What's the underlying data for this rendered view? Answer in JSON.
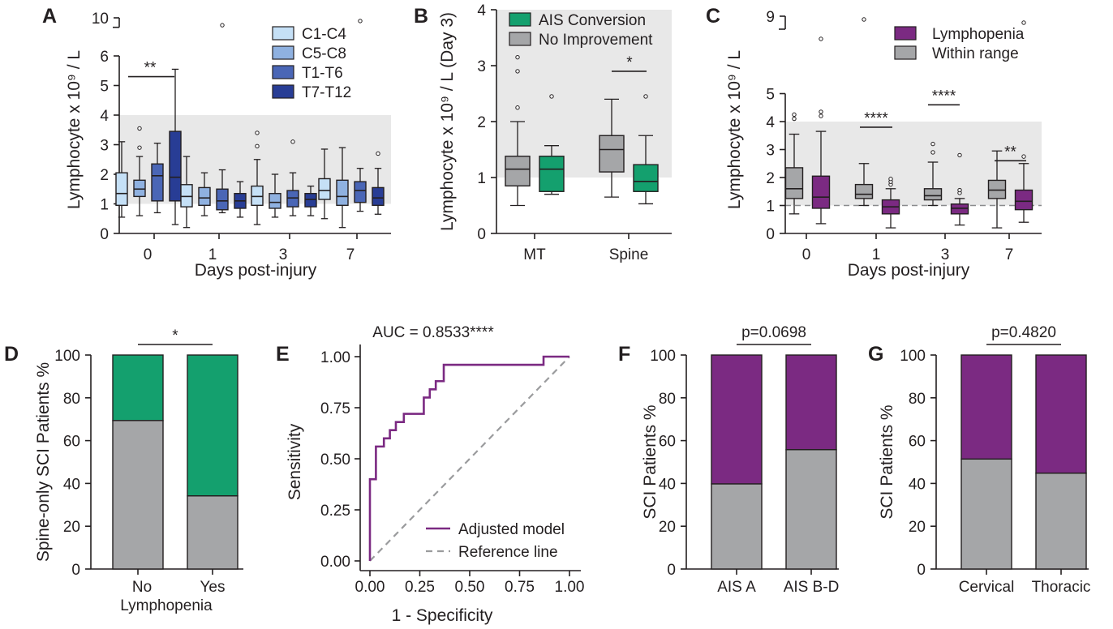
{
  "colors": {
    "C1-C4": "#c5e0f6",
    "C5-C8": "#8fb1e0",
    "T1-T6": "#4a66b6",
    "T7-T12": "#283d95",
    "green": "#14a06e",
    "grey": "#a5a6a8",
    "purple": "#7b2a82",
    "normal_band": "#e8e8e8",
    "line": "#231f20"
  },
  "chart_data": [
    {
      "panel": "A",
      "type": "box",
      "xlabel": "Days post-injury",
      "ylabel": "Lymphocyte x 10⁹ / L",
      "categories": [
        "0",
        "1",
        "3",
        "7"
      ],
      "ylim": [
        0,
        10
      ],
      "axis_break": [
        6,
        10
      ],
      "y_ticks": [
        "0",
        "1",
        "2",
        "3",
        "4",
        "5",
        "6",
        "10"
      ],
      "shaded_range": [
        1,
        4
      ],
      "legend": [
        "C1-C4",
        "C5-C8",
        "T1-T6",
        "T7-T12"
      ],
      "series": [
        {
          "name": "C1-C4",
          "boxes": [
            {
              "min": 0.55,
              "q1": 0.95,
              "median": 1.35,
              "q3": 2.05,
              "max": 3.1,
              "outliers": []
            },
            {
              "min": 0.2,
              "q1": 0.9,
              "median": 1.25,
              "q3": 1.65,
              "max": 2.6,
              "outliers": []
            },
            {
              "min": 0.3,
              "q1": 0.95,
              "median": 1.25,
              "q3": 1.6,
              "max": 2.5,
              "outliers": [
                2.95,
                3.4
              ]
            },
            {
              "min": 0.5,
              "q1": 1.15,
              "median": 1.45,
              "q3": 1.85,
              "max": 2.85,
              "outliers": []
            }
          ]
        },
        {
          "name": "C5-C8",
          "boxes": [
            {
              "min": 0.6,
              "q1": 1.25,
              "median": 1.5,
              "q3": 1.8,
              "max": 2.6,
              "outliers": [
                2.9,
                3.55
              ]
            },
            {
              "min": 0.6,
              "q1": 0.95,
              "median": 1.2,
              "q3": 1.55,
              "max": 2.05,
              "outliers": []
            },
            {
              "min": 0.55,
              "q1": 0.85,
              "median": 1.05,
              "q3": 1.35,
              "max": 2.0,
              "outliers": []
            },
            {
              "min": 0.2,
              "q1": 0.95,
              "median": 1.25,
              "q3": 1.8,
              "max": 2.9,
              "outliers": []
            }
          ]
        },
        {
          "name": "T1-T6",
          "boxes": [
            {
              "min": 0.7,
              "q1": 1.1,
              "median": 1.95,
              "q3": 2.35,
              "max": 3.05,
              "outliers": []
            },
            {
              "min": 0.7,
              "q1": 0.8,
              "median": 1.1,
              "q3": 1.5,
              "max": 2.15,
              "outliers": [
                9.3
              ]
            },
            {
              "min": 0.6,
              "q1": 0.9,
              "median": 1.2,
              "q3": 1.45,
              "max": 2.05,
              "outliers": [
                3.1
              ]
            },
            {
              "min": 0.75,
              "q1": 1.05,
              "median": 1.45,
              "q3": 1.75,
              "max": 2.2,
              "outliers": [
                9.7
              ]
            }
          ]
        },
        {
          "name": "T7-T12",
          "boxes": [
            {
              "min": 0.3,
              "q1": 1.1,
              "median": 1.9,
              "q3": 3.45,
              "max": 5.55,
              "outliers": []
            },
            {
              "min": 0.55,
              "q1": 0.85,
              "median": 1.1,
              "q3": 1.35,
              "max": 1.75,
              "outliers": []
            },
            {
              "min": 0.6,
              "q1": 0.9,
              "median": 1.15,
              "q3": 1.35,
              "max": 1.6,
              "outliers": []
            },
            {
              "min": 0.65,
              "q1": 0.95,
              "median": 1.2,
              "q3": 1.55,
              "max": 2.2,
              "outliers": [
                2.7
              ]
            }
          ]
        }
      ],
      "annotations": [
        {
          "text": "**",
          "between": "day 0: C1-C4 vs T7-T12"
        }
      ]
    },
    {
      "panel": "B",
      "type": "box",
      "xlabel": "",
      "ylabel": "Lymphocyte x 10⁹ / L (Day 3)",
      "categories": [
        "MT",
        "Spine"
      ],
      "ylim": [
        0,
        4
      ],
      "y_ticks": [
        "0",
        "1",
        "2",
        "3",
        "4"
      ],
      "shaded_range": [
        1,
        4
      ],
      "legend": [
        "AIS Conversion",
        "No Improvement"
      ],
      "series": [
        {
          "name": "No Improvement",
          "boxes": [
            {
              "min": 0.5,
              "q1": 0.85,
              "median": 1.15,
              "q3": 1.38,
              "max": 2.0,
              "outliers": [
                2.25,
                2.9,
                3.15
              ]
            },
            {
              "min": 0.65,
              "q1": 1.1,
              "median": 1.5,
              "q3": 1.75,
              "max": 2.4,
              "outliers": []
            }
          ]
        },
        {
          "name": "AIS Conversion",
          "boxes": [
            {
              "min": 0.7,
              "q1": 0.75,
              "median": 1.15,
              "q3": 1.38,
              "max": 1.57,
              "outliers": [
                2.45
              ]
            },
            {
              "min": 0.53,
              "q1": 0.75,
              "median": 0.93,
              "q3": 1.23,
              "max": 1.75,
              "outliers": [
                2.45
              ]
            }
          ]
        }
      ],
      "annotations": [
        {
          "text": "*",
          "between": "Spine: No Improvement vs AIS Conversion"
        }
      ]
    },
    {
      "panel": "C",
      "type": "box",
      "xlabel": "Days post-injury",
      "ylabel": "Lymphocyte x 10⁹ / L",
      "categories": [
        "0",
        "1",
        "3",
        "7"
      ],
      "ylim": [
        0,
        9
      ],
      "axis_break": [
        5,
        9
      ],
      "y_ticks": [
        "0",
        "1",
        "2",
        "3",
        "4",
        "5",
        "9"
      ],
      "shaded_range": [
        1,
        4
      ],
      "reference_line": 1,
      "legend": [
        "Lymphopenia",
        "Within range"
      ],
      "series": [
        {
          "name": "Within range",
          "boxes": [
            {
              "min": 0.7,
              "q1": 1.25,
              "median": 1.6,
              "q3": 2.35,
              "max": 3.55,
              "outliers": [
                4.1,
                4.25
              ]
            },
            {
              "min": 1.0,
              "q1": 1.25,
              "median": 1.4,
              "q3": 1.75,
              "max": 2.5,
              "outliers": [
                8.8
              ]
            },
            {
              "min": 1.0,
              "q1": 1.2,
              "median": 1.35,
              "q3": 1.6,
              "max": 2.55,
              "outliers": [
                2.9,
                3.2
              ]
            },
            {
              "min": 0.2,
              "q1": 1.25,
              "median": 1.55,
              "q3": 1.9,
              "max": 2.95,
              "outliers": []
            }
          ]
        },
        {
          "name": "Lymphopenia",
          "boxes": [
            {
              "min": 0.35,
              "q1": 0.9,
              "median": 1.3,
              "q3": 2.05,
              "max": 3.65,
              "outliers": [
                4.2,
                4.35,
                7.6
              ]
            },
            {
              "min": 0.2,
              "q1": 0.7,
              "median": 0.95,
              "q3": 1.2,
              "max": 1.6,
              "outliers": [
                1.75,
                1.85,
                1.95
              ]
            },
            {
              "min": 0.3,
              "q1": 0.7,
              "median": 0.9,
              "q3": 1.05,
              "max": 1.25,
              "outliers": [
                1.45,
                1.55,
                2.8
              ]
            },
            {
              "min": 0.4,
              "q1": 0.85,
              "median": 1.15,
              "q3": 1.55,
              "max": 2.5,
              "outliers": [
                2.75,
                8.6
              ]
            }
          ]
        }
      ],
      "annotations": [
        {
          "text": "****",
          "between": "day 1"
        },
        {
          "text": "****",
          "between": "day 3"
        },
        {
          "text": "**",
          "between": "day 7"
        }
      ]
    },
    {
      "panel": "D",
      "type": "bar",
      "stacked": true,
      "ylabel": "Spine-only SCI Patients %",
      "categories": [
        "No\nLymphopenia",
        "Yes"
      ],
      "category_lines": [
        [
          "No",
          "Lymphopenia"
        ],
        [
          "Yes"
        ]
      ],
      "ylim": [
        0,
        100
      ],
      "y_ticks": [
        "0",
        "20",
        "40",
        "60",
        "80",
        "100"
      ],
      "series": [
        {
          "color": "grey",
          "values": [
            69.4,
            34.2
          ]
        },
        {
          "color": "green",
          "values": [
            30.6,
            65.8
          ]
        }
      ],
      "annotation": "*"
    },
    {
      "panel": "E",
      "type": "line",
      "title": "AUC = 0.8533****",
      "xlabel": "1 - Specificity",
      "ylabel": "Sensitivity",
      "xlim": [
        0,
        1
      ],
      "ylim": [
        0,
        1
      ],
      "x_ticks": [
        "0.00",
        "0.25",
        "0.50",
        "0.75",
        "1.00"
      ],
      "y_ticks": [
        "0.00",
        "0.25",
        "0.50",
        "0.75",
        "1.00"
      ],
      "legend_placement": "bottom-right",
      "series": [
        {
          "name": "Adjusted model",
          "x": [
            0,
            0,
            0.03,
            0.03,
            0.07,
            0.07,
            0.1,
            0.1,
            0.13,
            0.13,
            0.17,
            0.17,
            0.27,
            0.27,
            0.3,
            0.3,
            0.33,
            0.33,
            0.37,
            0.37,
            0.87,
            0.87,
            1
          ],
          "y": [
            0,
            0.4,
            0.4,
            0.56,
            0.56,
            0.6,
            0.6,
            0.64,
            0.64,
            0.68,
            0.68,
            0.72,
            0.72,
            0.8,
            0.8,
            0.84,
            0.84,
            0.88,
            0.88,
            0.96,
            0.96,
            1,
            1
          ]
        },
        {
          "name": "Reference line",
          "x": [
            0,
            1
          ],
          "y": [
            0,
            1
          ]
        }
      ]
    },
    {
      "panel": "F",
      "type": "bar",
      "stacked": true,
      "title": "p=0.0698",
      "ylabel": "SCI Patients %",
      "categories": [
        "AIS A",
        "AIS B-D"
      ],
      "ylim": [
        0,
        100
      ],
      "y_ticks": [
        "0",
        "20",
        "40",
        "60",
        "80",
        "100"
      ],
      "series": [
        {
          "color": "grey",
          "values": [
            39.8,
            55.8
          ]
        },
        {
          "color": "purple",
          "values": [
            60.2,
            44.2
          ]
        }
      ]
    },
    {
      "panel": "G",
      "type": "bar",
      "stacked": true,
      "title": "p=0.4820",
      "ylabel": "SCI Patients %",
      "categories": [
        "Cervical",
        "Thoracic"
      ],
      "ylim": [
        0,
        100
      ],
      "y_ticks": [
        "0",
        "20",
        "40",
        "60",
        "80",
        "100"
      ],
      "series": [
        {
          "color": "grey",
          "values": [
            51.4,
            44.8
          ]
        },
        {
          "color": "purple",
          "values": [
            48.6,
            55.2
          ]
        }
      ]
    }
  ]
}
